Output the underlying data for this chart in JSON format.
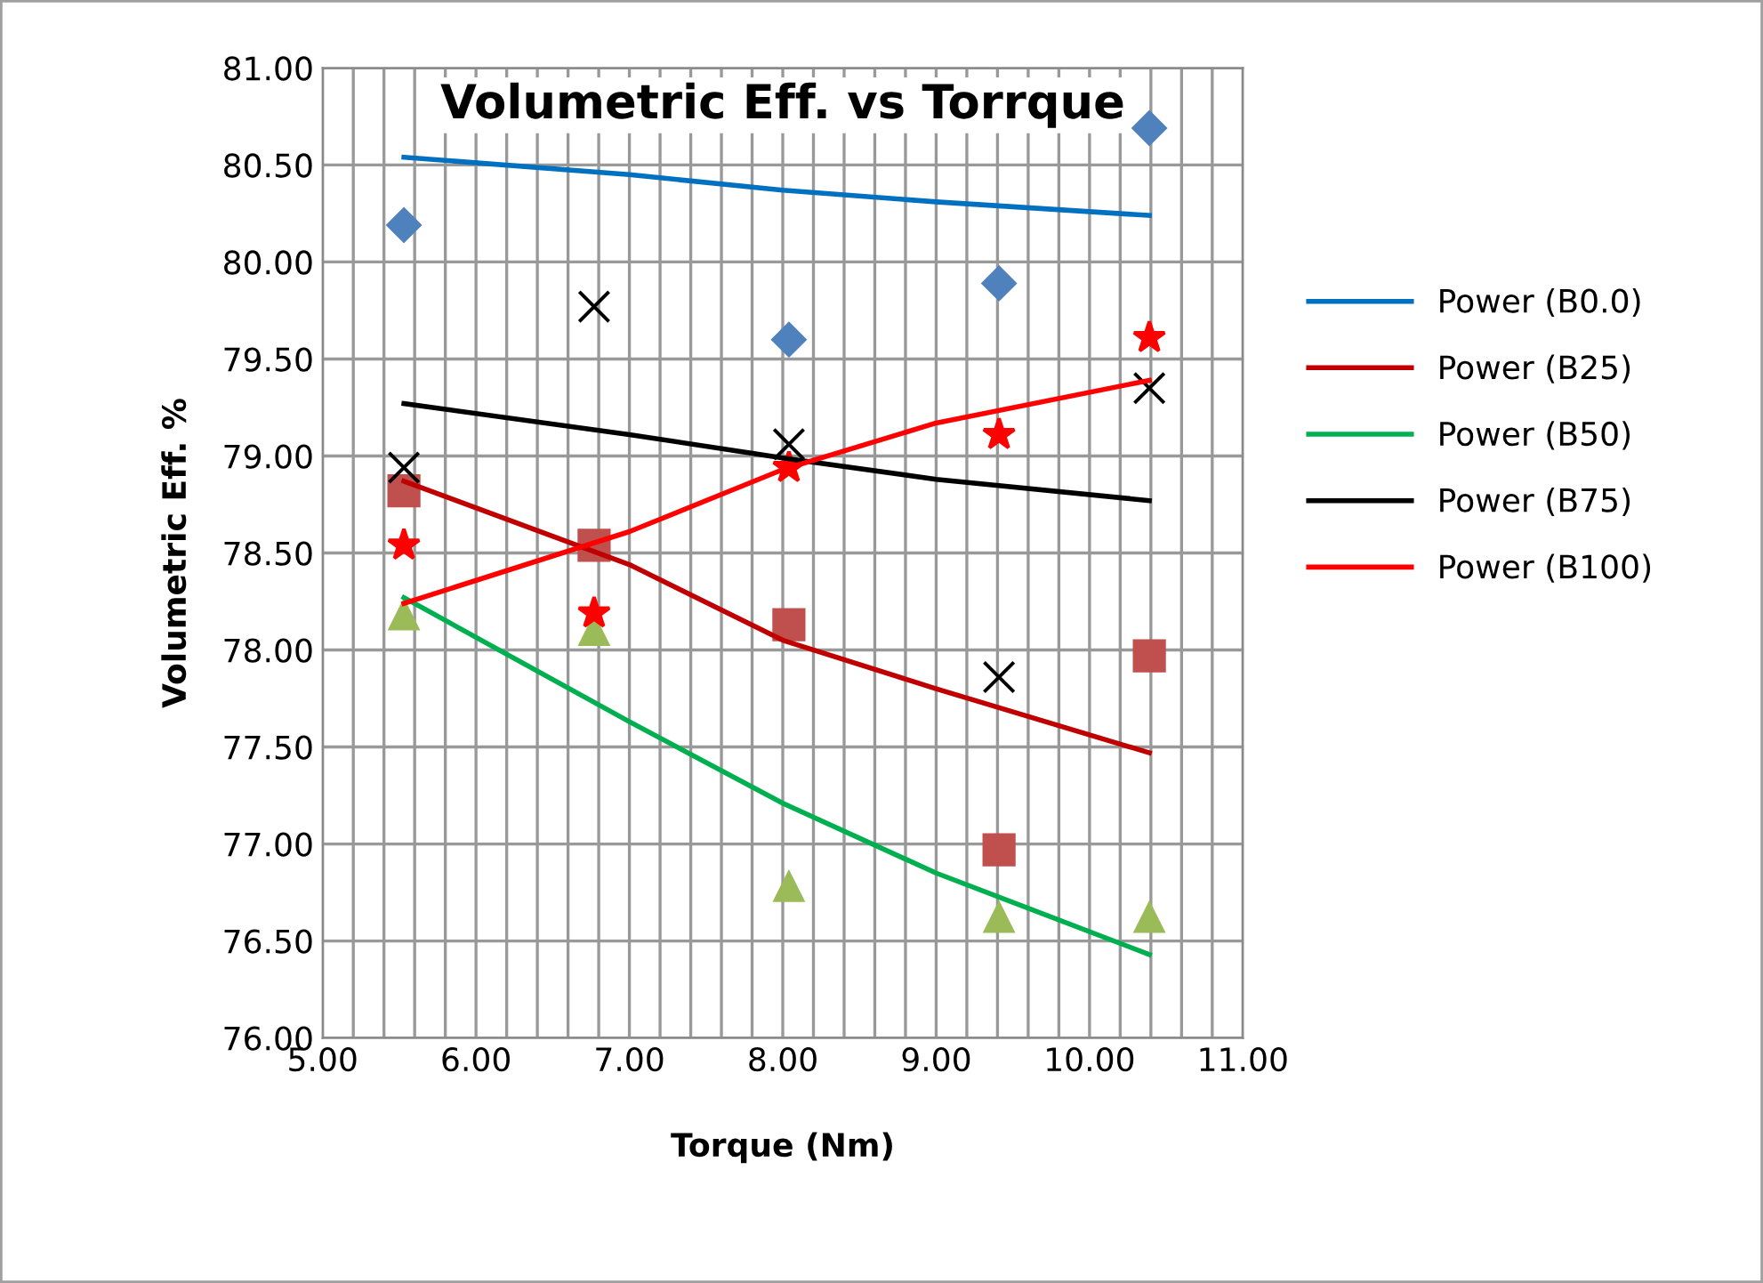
{
  "chart_data": {
    "type": "scatter",
    "title": "Volumetric Eff. vs Torrque",
    "xlabel": "Torque (Nm)",
    "ylabel": "Volumetric Eff. %",
    "x": [
      5.53,
      6.77,
      8.04,
      9.41,
      10.39
    ],
    "series": [
      {
        "color": "#4f81bd",
        "marker": "diamond",
        "values": [
          80.19,
          null,
          79.6,
          79.89,
          80.69
        ]
      },
      {
        "color": "#c0504d",
        "marker": "square",
        "values": [
          78.82,
          78.54,
          78.13,
          76.97,
          77.97
        ]
      },
      {
        "color": "#9bbb59",
        "marker": "triangle",
        "values": [
          78.18,
          78.1,
          76.78,
          76.62,
          76.62
        ]
      },
      {
        "color": "#000000",
        "marker": "cross",
        "values": [
          78.94,
          79.77,
          79.06,
          77.86,
          79.35
        ]
      },
      {
        "color": "#ff0000",
        "marker": "star",
        "values": [
          78.54,
          78.19,
          78.94,
          79.11,
          79.61
        ]
      },
      {
        "type": "line",
        "name": "Power (B0.0)",
        "color": "#0070c0",
        "x": [
          5.53,
          7.0,
          8.0,
          9.0,
          10.39
        ],
        "values": [
          80.54,
          80.45,
          80.37,
          80.31,
          80.24
        ]
      },
      {
        "type": "line",
        "name": "Power (B25)",
        "color": "#c00000",
        "x": [
          5.53,
          7.0,
          8.0,
          9.0,
          10.39
        ],
        "values": [
          78.87,
          78.44,
          78.05,
          77.8,
          77.47
        ]
      },
      {
        "type": "line",
        "name": "Power (B50)",
        "color": "#00b050",
        "x": [
          5.53,
          7.0,
          8.0,
          9.0,
          10.39
        ],
        "values": [
          78.27,
          77.63,
          77.21,
          76.85,
          76.43
        ]
      },
      {
        "type": "line",
        "name": "Power (B75)",
        "color": "#000000",
        "x": [
          5.53,
          7.0,
          8.0,
          9.0,
          10.39
        ],
        "values": [
          79.27,
          79.11,
          78.99,
          78.88,
          78.77
        ]
      },
      {
        "type": "line",
        "name": "Power (B100)",
        "color": "#ff0000",
        "x": [
          5.53,
          7.0,
          8.0,
          9.0,
          10.39
        ],
        "values": [
          78.24,
          78.61,
          78.93,
          79.17,
          79.39
        ]
      }
    ],
    "xlim": [
      5.0,
      11.0
    ],
    "xticks": [
      {
        "value": 5.0,
        "label": "5.00"
      },
      {
        "value": 5.2,
        "label": null
      },
      {
        "value": 5.4,
        "label": null
      },
      {
        "value": 5.6,
        "label": null
      },
      {
        "value": 5.8,
        "label": null
      },
      {
        "value": 6.0,
        "label": "6.00"
      },
      {
        "value": 6.2,
        "label": null
      },
      {
        "value": 6.4,
        "label": null
      },
      {
        "value": 6.6,
        "label": null
      },
      {
        "value": 6.8,
        "label": null
      },
      {
        "value": 7.0,
        "label": "7.00"
      },
      {
        "value": 7.2,
        "label": null
      },
      {
        "value": 7.4,
        "label": null
      },
      {
        "value": 7.6,
        "label": null
      },
      {
        "value": 7.8,
        "label": null
      },
      {
        "value": 8.0,
        "label": "8.00"
      },
      {
        "value": 8.2,
        "label": null
      },
      {
        "value": 8.4,
        "label": null
      },
      {
        "value": 8.6,
        "label": null
      },
      {
        "value": 8.8,
        "label": null
      },
      {
        "value": 9.0,
        "label": "9.00"
      },
      {
        "value": 9.2,
        "label": null
      },
      {
        "value": 9.4,
        "label": null
      },
      {
        "value": 9.6,
        "label": null
      },
      {
        "value": 9.8,
        "label": null
      },
      {
        "value": 10.0,
        "label": "10.00"
      },
      {
        "value": 10.2,
        "label": null
      },
      {
        "value": 10.4,
        "label": null
      },
      {
        "value": 10.6,
        "label": null
      },
      {
        "value": 10.8,
        "label": null
      },
      {
        "value": 11.0,
        "label": "11.00"
      }
    ],
    "ylim": [
      76.0,
      81.0
    ],
    "yticks": [
      {
        "value": 76.0,
        "label": "76.00"
      },
      {
        "value": 76.5,
        "label": "76.50"
      },
      {
        "value": 77.0,
        "label": "77.00"
      },
      {
        "value": 77.5,
        "label": "77.50"
      },
      {
        "value": 78.0,
        "label": "78.00"
      },
      {
        "value": 78.5,
        "label": "78.50"
      },
      {
        "value": 79.0,
        "label": "79.00"
      },
      {
        "value": 79.5,
        "label": "79.50"
      },
      {
        "value": 80.0,
        "label": "80.00"
      },
      {
        "value": 80.5,
        "label": "80.50"
      },
      {
        "value": 81.0,
        "label": "81.00"
      }
    ],
    "grid": true,
    "legend": "right"
  }
}
